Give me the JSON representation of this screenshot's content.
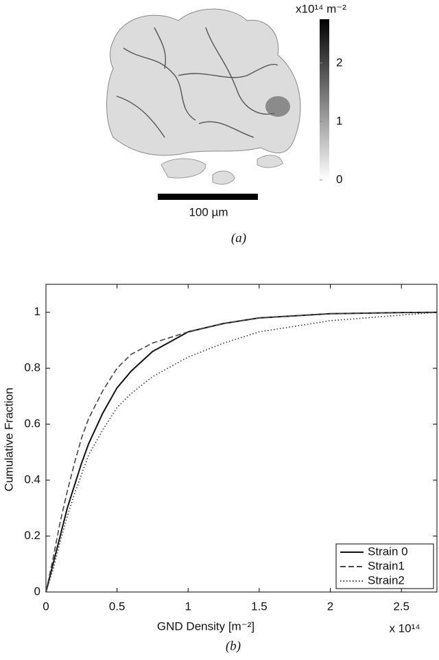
{
  "image_panel": {
    "colorbar": {
      "label": "x10¹⁴ m⁻²",
      "lim": [
        0,
        2.75
      ],
      "ticks": [
        0,
        1,
        2
      ]
    },
    "scale_bar": "100 µm",
    "caption": "(a)"
  },
  "chart_data": {
    "type": "line",
    "caption": "(b)",
    "xlabel": "GND Density [m⁻²]",
    "ylabel": "Cumulative Fraction",
    "x_multiplier": "x 10¹⁴",
    "x": [
      0,
      0.05,
      0.1,
      0.15,
      0.2,
      0.25,
      0.3,
      0.4,
      0.5,
      0.6,
      0.75,
      1.0,
      1.25,
      1.5,
      2.0,
      2.5,
      2.75
    ],
    "series": [
      {
        "name": "Strain 0",
        "color": "#111111",
        "style": "solid",
        "values": [
          0,
          0.1,
          0.2,
          0.3,
          0.38,
          0.46,
          0.53,
          0.64,
          0.73,
          0.79,
          0.86,
          0.93,
          0.96,
          0.98,
          0.995,
          0.999,
          1
        ]
      },
      {
        "name": "Strain1",
        "color": "#444444",
        "style": "dashed",
        "values": [
          0,
          0.12,
          0.25,
          0.36,
          0.46,
          0.55,
          0.62,
          0.72,
          0.8,
          0.85,
          0.89,
          0.93,
          0.96,
          0.98,
          0.995,
          0.999,
          1
        ]
      },
      {
        "name": "Strain2",
        "color": "#333333",
        "style": "dotted",
        "values": [
          0,
          0.08,
          0.18,
          0.27,
          0.35,
          0.42,
          0.49,
          0.58,
          0.66,
          0.71,
          0.77,
          0.84,
          0.89,
          0.93,
          0.97,
          0.99,
          1
        ]
      }
    ],
    "xlim": [
      0,
      2.75
    ],
    "ylim": [
      0,
      1.1
    ],
    "xticks": [
      0,
      0.5,
      1,
      1.5,
      2,
      2.5
    ],
    "yticks": [
      0,
      0.2,
      0.4,
      0.6,
      0.8,
      1
    ],
    "legend": "lower right"
  }
}
